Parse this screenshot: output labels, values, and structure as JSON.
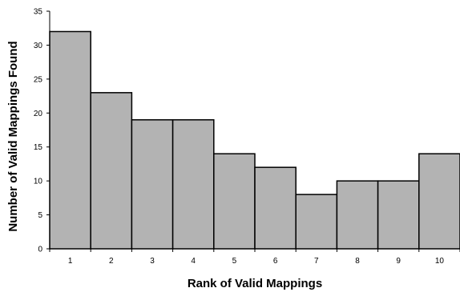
{
  "chart_data": {
    "type": "bar",
    "title": "",
    "xlabel": "Rank of Valid Mappings",
    "ylabel": "Number of Valid Mappings Found",
    "categories": [
      "1",
      "2",
      "3",
      "4",
      "5",
      "6",
      "7",
      "8",
      "9",
      "10"
    ],
    "values": [
      32,
      23,
      19,
      19,
      14,
      12,
      8,
      10,
      10,
      14
    ],
    "ylim": [
      0,
      35
    ],
    "yticks": [
      0,
      5,
      10,
      15,
      20,
      25,
      30,
      35
    ],
    "grid": false,
    "legend": "none",
    "bar_color": "#b3b3b3",
    "edge_color": "#000000"
  }
}
